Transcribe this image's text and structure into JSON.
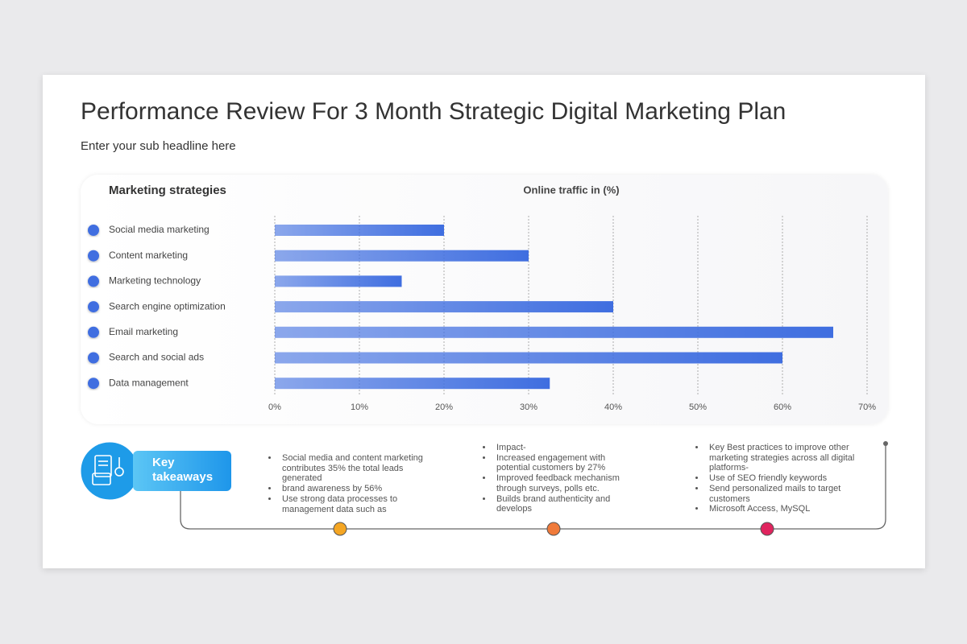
{
  "header": {
    "title": "Performance Review For 3 Month Strategic Digital Marketing Plan",
    "subtitle": "Enter your sub headline here"
  },
  "chart_data": {
    "type": "hbar",
    "ylabel": "Marketing strategies",
    "xlabel": "Online traffic in (%)",
    "categories": [
      "Social media marketing",
      "Content marketing",
      "Marketing technology",
      "Search engine optimization",
      "Email marketing",
      "Search and social ads",
      "Data management"
    ],
    "values": [
      20,
      30,
      15,
      40,
      66,
      60,
      32.5
    ],
    "color": "#3f6ee0",
    "xlim": [
      0,
      70
    ],
    "xticks": [
      {
        "value": 0,
        "label": "0%"
      },
      {
        "value": 10,
        "label": "10%"
      },
      {
        "value": 20,
        "label": "20%"
      },
      {
        "value": 30,
        "label": "30%"
      },
      {
        "value": 40,
        "label": "40%"
      },
      {
        "value": 50,
        "label": "50%"
      },
      {
        "value": 60,
        "label": "60%"
      },
      {
        "value": 70,
        "label": "70%"
      }
    ],
    "grid": true
  },
  "takeaways": {
    "label": "Key takeaways",
    "columns": [
      [
        "Social media and content marketing contributes 35% the total leads generated",
        "brand awareness by 56%",
        "Use strong data processes to management data such as"
      ],
      [
        "Impact-",
        "Increased engagement with potential customers by 27%",
        "Improved feedback mechanism through surveys, polls etc.",
        "Builds brand authenticity and develops"
      ],
      [
        "Key Best practices to improve other marketing strategies across all digital platforms-",
        "Use of SEO friendly keywords",
        "Send personalized mails to target customers",
        "Microsoft Access, MySQL"
      ]
    ]
  }
}
